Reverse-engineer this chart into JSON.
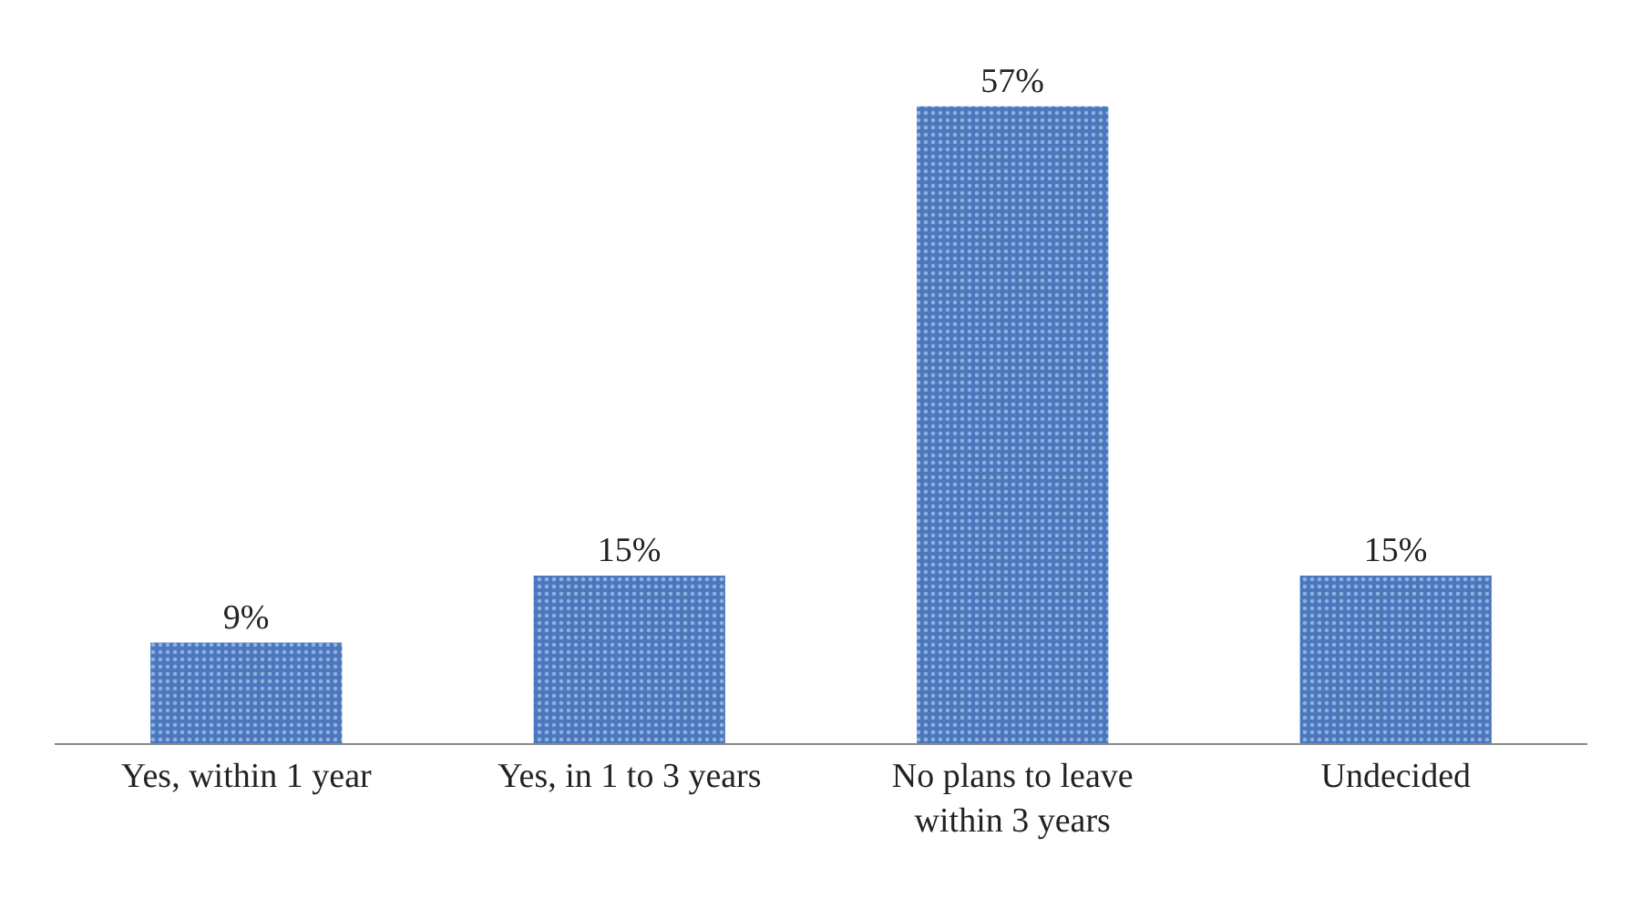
{
  "chart_data": {
    "type": "bar",
    "categories": [
      "Yes, within 1 year",
      "Yes, in 1 to 3 years",
      "No plans to leave within 3 years",
      "Undecided"
    ],
    "series": [
      {
        "color": "#4a78bf",
        "values": [
          9,
          15,
          57,
          15
        ],
        "value_labels": [
          "9%",
          "15%",
          "57%",
          "15%"
        ]
      }
    ],
    "data_labels": false
  }
}
